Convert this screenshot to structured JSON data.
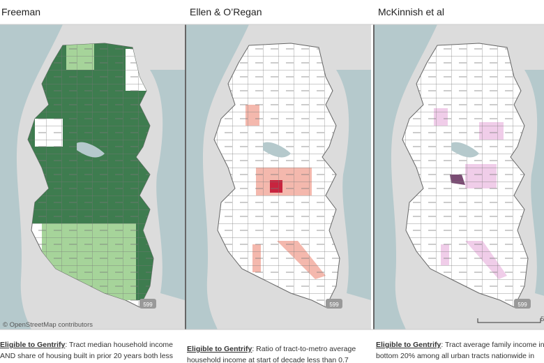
{
  "panels": [
    {
      "title": "Freeman",
      "description_label": "Eligible to Gentrify",
      "description": [
        ": Tract median household income",
        "AND share of housing built in prior 20 years both less"
      ]
    },
    {
      "title": "Ellen & O’Regan",
      "description_label": "Eligible to Gentrify",
      "description": [
        ": Ratio of tract-to-metro average",
        "household income at start of decade less than 0.7"
      ]
    },
    {
      "title": "McKinnish et al",
      "description_label": "Eligible to Gentrify",
      "description": [
        ": Tract average family income in",
        "bottom 20% among all urban tracts nationwide in"
      ]
    }
  ],
  "map": {
    "attribution": "© OpenStreetMap contributors",
    "route_label": "599",
    "scale_label": "5"
  }
}
